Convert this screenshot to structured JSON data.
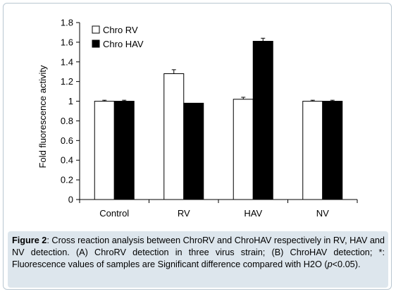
{
  "chart_data": {
    "type": "bar",
    "title": "",
    "xlabel": "",
    "ylabel": "Fold fluorescence activity",
    "ylim": [
      0,
      1.8
    ],
    "yticks": [
      0,
      0.2,
      0.4,
      0.6,
      0.8,
      1,
      1.2,
      1.4,
      1.6,
      1.8
    ],
    "ytick_labels": [
      "0",
      "0.2",
      "0.4",
      "0.6",
      "0.8",
      "1",
      "1.2",
      "1.4",
      "1.6",
      "1.8"
    ],
    "categories": [
      "Control",
      "RV",
      "HAV",
      "NV"
    ],
    "series": [
      {
        "name": "Chro RV",
        "color": "#ffffff",
        "values": [
          1.0,
          1.28,
          1.02,
          1.0
        ],
        "errors": [
          0.01,
          0.04,
          0.02,
          0.01
        ]
      },
      {
        "name": "Chro HAV",
        "color": "#000000",
        "values": [
          1.0,
          0.98,
          1.61,
          1.0
        ],
        "errors": [
          0.01,
          0.0,
          0.03,
          0.01
        ]
      }
    ],
    "grid": false,
    "legend_position": "top-left"
  },
  "caption": {
    "label": "Figure 2",
    "text_before_p": ": Cross reaction analysis between ChroRV and ChroHAV respectively in RV, HAV and NV detection. (A) ChroRV detection in three virus strain; (B) ChroHAV detection; *: Fluorescence values of samples are Significant difference compared with H2O (",
    "p_symbol": "p",
    "text_after_p": "<0.05)."
  }
}
